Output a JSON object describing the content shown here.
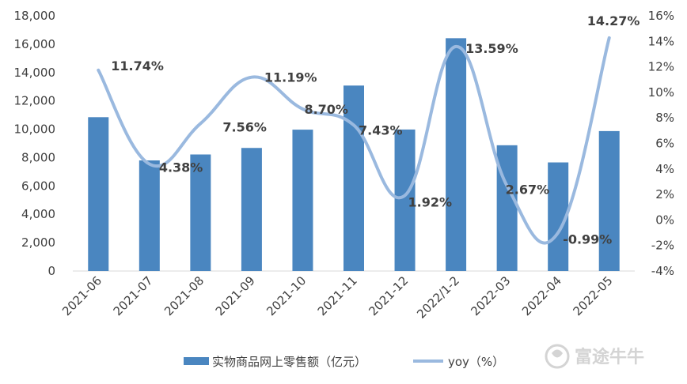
{
  "chart_data": {
    "type": "bar+line",
    "categories": [
      "2021-06",
      "2021-07",
      "2021-08",
      "2021-09",
      "2021-10",
      "2021-11",
      "2021-12",
      "2022/1-2",
      "2022-03",
      "2022-04",
      "2022-05"
    ],
    "series": [
      {
        "name": "实物商品网上零售额（亿元）",
        "type": "bar",
        "axis": "left",
        "color": "#4a86c0",
        "values": [
          10850,
          7800,
          8220,
          8680,
          9970,
          13080,
          9980,
          16420,
          8870,
          7660,
          9870
        ]
      },
      {
        "name": "yoy（%）",
        "type": "line",
        "axis": "right",
        "color": "#9ab9df",
        "values": [
          11.74,
          4.38,
          7.56,
          11.19,
          8.7,
          7.43,
          1.92,
          13.59,
          2.67,
          -0.99,
          14.27
        ],
        "labels": [
          "11.74%",
          "4.38%",
          "7.56%",
          "11.19%",
          "8.70%",
          "7.43%",
          "1.92%",
          "13.59%",
          "2.67%",
          "-0.99%",
          "14.27%"
        ]
      }
    ],
    "y_left": {
      "min": 0,
      "max": 18000,
      "ticks": [
        "0",
        "2,000",
        "4,000",
        "6,000",
        "8,000",
        "10,000",
        "12,000",
        "14,000",
        "16,000",
        "18,000"
      ]
    },
    "y_right": {
      "min": -4,
      "max": 16,
      "ticks": [
        "-4%",
        "-2%",
        "0%",
        "2%",
        "4%",
        "6%",
        "8%",
        "10%",
        "12%",
        "14%",
        "16%"
      ]
    },
    "legend_position": "bottom-center",
    "grid": false
  },
  "watermark": {
    "text": "富途牛牛",
    "icon": "futu-bull-logo-icon"
  }
}
